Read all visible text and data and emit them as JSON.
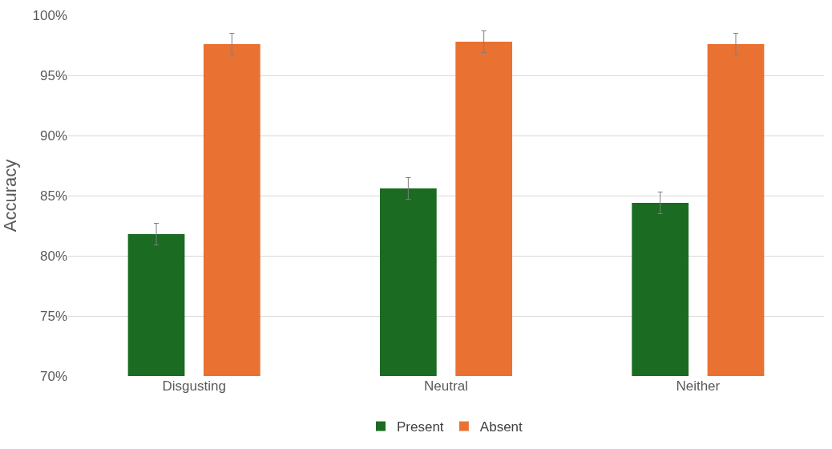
{
  "chart_data": {
    "type": "bar",
    "ylabel": "Accuracy",
    "categories": [
      "Disgusting",
      "Neutral",
      "Neither"
    ],
    "series": [
      {
        "name": "Present",
        "color": "#1b6b22",
        "values": [
          81.8,
          85.6,
          84.4
        ],
        "errors": [
          0.9,
          0.9,
          0.9
        ]
      },
      {
        "name": "Absent",
        "color": "#e97132",
        "values": [
          97.6,
          97.8,
          97.6
        ],
        "errors": [
          0.9,
          0.9,
          0.9
        ]
      }
    ],
    "ylim": [
      70,
      100
    ],
    "yticks": [
      {
        "value": 70,
        "label": "70%"
      },
      {
        "value": 75,
        "label": "75%"
      },
      {
        "value": 80,
        "label": "80%"
      },
      {
        "value": 85,
        "label": "85%"
      },
      {
        "value": 90,
        "label": "90%"
      },
      {
        "value": 95,
        "label": "95%"
      },
      {
        "value": 100,
        "label": "100%"
      }
    ],
    "grid": "y",
    "legend": "bottom"
  }
}
